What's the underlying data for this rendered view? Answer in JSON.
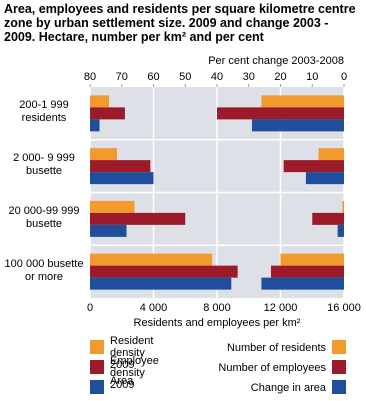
{
  "chart_data": {
    "type": "bar",
    "orientation": "horizontal",
    "title": "Area, employees and residents per square kilometre centre zone by urban settlement size. 2009 and change 2003 - 2009. Hectare, number per km² and per cent",
    "categories": [
      "200-1 999 residents",
      "2 000- 9 999 busette",
      "20 000-99 999 busette",
      "100 000 busette or more"
    ],
    "xlabel": "Residents and employees per km²",
    "x2label": "Per cent change 2003-2008",
    "xlim": [
      0,
      16000
    ],
    "xticks": [
      0,
      {
        "value": 4000,
        "label": "4 000"
      },
      {
        "value": 8000,
        "label": "8 000"
      },
      {
        "value": 12000,
        "label": "12 000"
      },
      {
        "value": 16000,
        "label": "16 000"
      }
    ],
    "x2lim": [
      80,
      0
    ],
    "x2ticks": [
      80,
      70,
      60,
      50,
      40,
      30,
      20,
      10,
      0
    ],
    "grid": true,
    "series": [
      {
        "name": "Resident density 2009",
        "color": "#f39a2e",
        "values": [
          1200,
          1700,
          2800,
          7700
        ]
      },
      {
        "name": "Employee density 2009",
        "color": "#9b1b2a",
        "values": [
          2200,
          3800,
          6000,
          9300
        ]
      },
      {
        "name": "Area",
        "color": "#1f4e9b",
        "values": [
          600,
          4000,
          2300,
          8900
        ]
      },
      {
        "name": "Number of residents",
        "color": "#f39a2e",
        "axis": "x2",
        "values": [
          26,
          8,
          0.5,
          20
        ]
      },
      {
        "name": "Number of employees",
        "color": "#9b1b2a",
        "axis": "x2",
        "values": [
          40,
          19,
          10,
          23
        ]
      },
      {
        "name": "Change in area",
        "color": "#1f4e9b",
        "axis": "x2",
        "values": [
          29,
          12,
          2,
          26
        ]
      }
    ]
  }
}
